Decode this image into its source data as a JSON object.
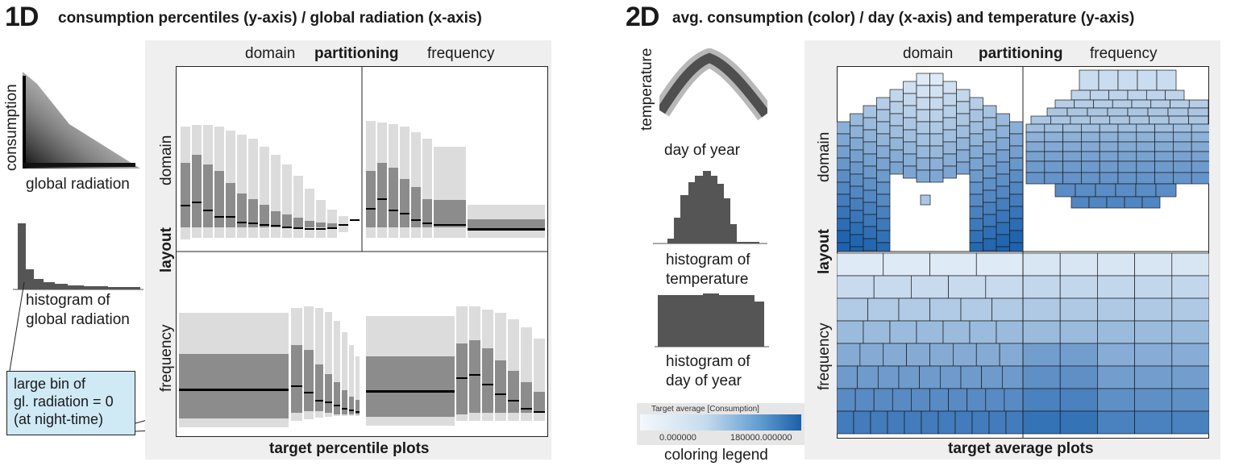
{
  "left": {
    "tag": "1D",
    "heading": "consumption percentiles (y-axis) / global radiation (x-axis)",
    "scatter_ylabel": "consumption",
    "scatter_xlabel": "global radiation",
    "hist_label_1": "histogram of",
    "hist_label_2": "global radiation",
    "callout": [
      "large bin of",
      "gl. radiation = 0",
      "(at night-time)"
    ],
    "partition_domain": "domain",
    "partition_bold": "partitioning",
    "partition_frequency": "frequency",
    "layout_bold": "layout",
    "layout_domain": "domain",
    "layout_frequency": "frequency",
    "footer": "target percentile plots"
  },
  "right": {
    "tag": "2D",
    "heading": "avg. consumption (color) / day (x-axis) and temperature (y-axis)",
    "scatter_ylabel": "temperature",
    "scatter_xlabel": "day of year",
    "hist1_1": "histogram of",
    "hist1_2": "temperature",
    "hist2_1": "histogram of",
    "hist2_2": "day of year",
    "legend_title": "Target average [Consumption]",
    "legend_min": "0.000000",
    "legend_max": "180000.000000",
    "legend_caption": "coloring legend",
    "partition_domain": "domain",
    "partition_bold": "partitioning",
    "partition_frequency": "frequency",
    "layout_bold": "layout",
    "layout_domain": "domain",
    "layout_frequency": "frequency",
    "footer": "target average plots",
    "colors": {
      "low": "#e8f1fa",
      "high": "#1d62ae"
    }
  }
}
